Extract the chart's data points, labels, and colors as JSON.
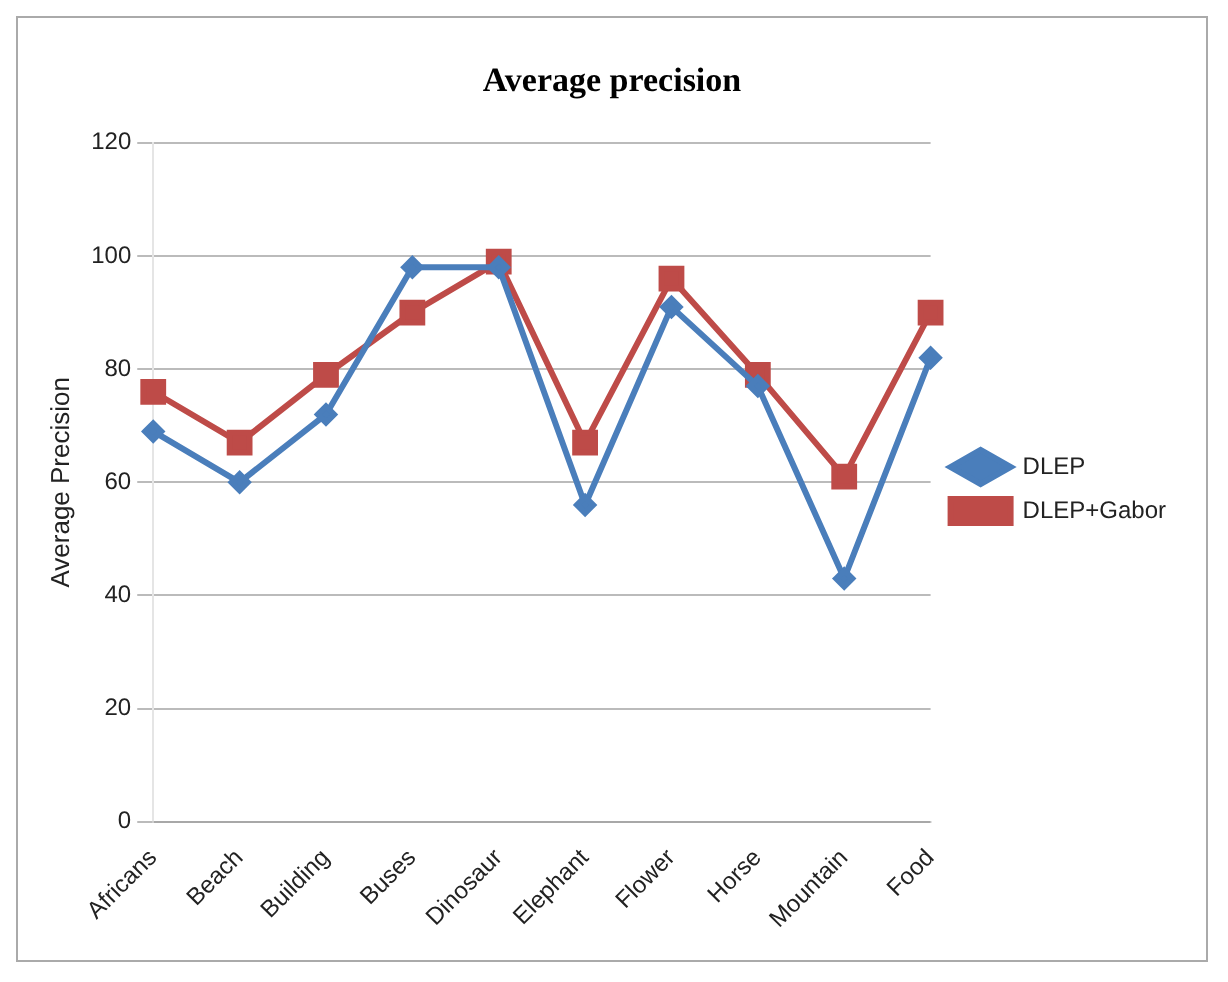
{
  "chart_data": {
    "type": "line",
    "title": "Average precision",
    "ylabel": "Average Precision",
    "categories": [
      "Africans",
      "Beach",
      "Building",
      "Buses",
      "Dinosaur",
      "Elephant",
      "Flower",
      "Horse",
      "Mountain",
      "Food"
    ],
    "series": [
      {
        "name": "DLEP",
        "color": "#4a7ebb",
        "values": [
          69,
          60,
          72,
          98,
          98,
          56,
          91,
          77,
          43,
          82
        ],
        "marker": "diamond"
      },
      {
        "name": "DLEP+Gabor",
        "color": "#be4b48",
        "values": [
          76,
          67,
          79,
          90,
          99,
          67,
          96,
          79,
          61,
          90
        ],
        "marker": "square"
      }
    ],
    "ylim": [
      0,
      120
    ],
    "yticks": [
      0,
      20,
      40,
      60,
      80,
      100,
      120
    ],
    "grid": "y",
    "legend": "right"
  }
}
